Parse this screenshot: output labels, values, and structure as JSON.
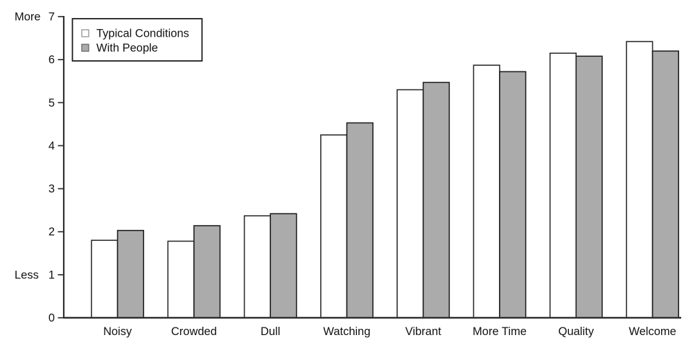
{
  "chart_data": {
    "type": "bar",
    "title": "",
    "xlabel": "",
    "ylabel": "",
    "grid": false,
    "background": "#FFFFFF",
    "categories": [
      "Noisy",
      "Crowded",
      "Dull",
      "Watching",
      "Vibrant",
      "More Time",
      "Quality",
      "Welcome"
    ],
    "series": [
      {
        "name": "Typical Conditions",
        "values": [
          1.8,
          1.78,
          2.37,
          4.25,
          5.3,
          5.87,
          6.15,
          6.42
        ],
        "fill": "#FFFFFF",
        "stroke": "#2B2B2B",
        "swatch_stroke": "#9A9A9A"
      },
      {
        "name": "With People",
        "values": [
          2.03,
          2.14,
          2.42,
          4.53,
          5.47,
          5.72,
          6.08,
          6.2
        ],
        "fill": "#ABABAB",
        "stroke": "#1F1F1F",
        "swatch_stroke": "#6E6E6E"
      }
    ],
    "ylim": [
      0,
      7
    ],
    "yticks": [
      0,
      1,
      2,
      3,
      4,
      5,
      6,
      7
    ],
    "y_annotations": [
      {
        "value": 7,
        "label": "More"
      },
      {
        "value": 1,
        "label": "Less"
      }
    ],
    "legend": {
      "position": "top-left",
      "entries": [
        "Typical Conditions",
        "With People"
      ]
    }
  },
  "colors": {
    "axis": "#2E2E2E",
    "tick": "#2E2E2E",
    "text": "#111111",
    "legend_border": "#1A1A1A"
  }
}
